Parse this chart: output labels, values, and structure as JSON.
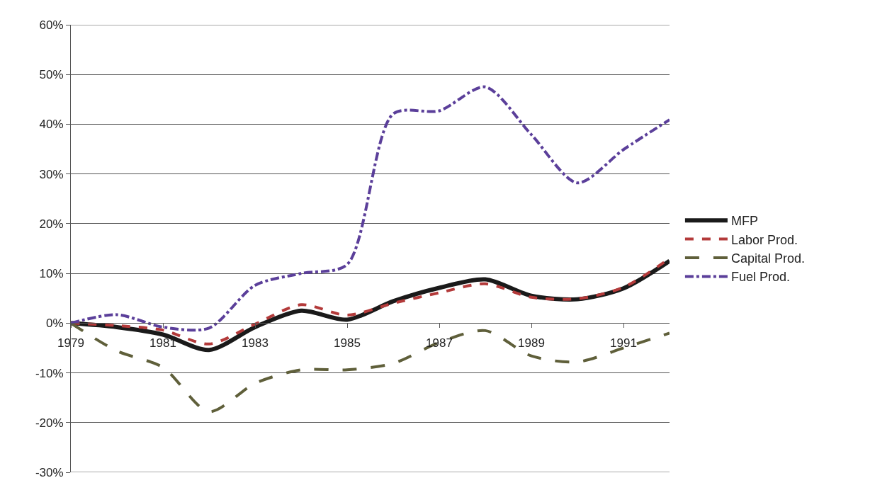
{
  "chart_data": {
    "type": "line",
    "categories": [
      "1979",
      null,
      "1981",
      null,
      "1983",
      null,
      "1985",
      null,
      "1987",
      null,
      "1989",
      null,
      "1991",
      null
    ],
    "series": [
      {
        "name": "MFP",
        "color": "#1a1a1a",
        "line_style": "solid",
        "values": [
          0,
          -0.8,
          -2.3,
          -5.4,
          -0.8,
          2.5,
          0.7,
          4.4,
          7.1,
          8.8,
          5.5,
          4.8,
          7.0,
          12.5
        ]
      },
      {
        "name": "Labor Prod.",
        "color": "#b33a3a",
        "line_style": "dashed",
        "values": [
          0,
          -0.5,
          -1.4,
          -4.2,
          -0.2,
          3.7,
          1.6,
          4.0,
          6.1,
          7.9,
          5.2,
          4.9,
          7.2,
          13.0
        ]
      },
      {
        "name": "Capital Prod.",
        "color": "#5f5f3a",
        "line_style": "longdash",
        "values": [
          0,
          -5.6,
          -8.9,
          -17.8,
          -12.1,
          -9.4,
          -9.4,
          -8.1,
          -3.9,
          -1.5,
          -6.6,
          -7.8,
          -5.0,
          -2.0
        ]
      },
      {
        "name": "Fuel Prod.",
        "color": "#5b3f9a",
        "line_style": "dashdot",
        "values": [
          0,
          1.7,
          -0.8,
          -1.0,
          7.6,
          10.0,
          11.8,
          42.1,
          42.7,
          47.5,
          37.9,
          28.2,
          34.9,
          40.9
        ]
      }
    ],
    "ylim": [
      -30,
      60
    ],
    "yticks": [
      {
        "value": -30,
        "label": "-30%"
      },
      {
        "value": -20,
        "label": "-20%"
      },
      {
        "value": -10,
        "label": "-10%"
      },
      {
        "value": 0,
        "label": "0%"
      },
      {
        "value": 10,
        "label": "10%"
      },
      {
        "value": 20,
        "label": "20%"
      },
      {
        "value": 30,
        "label": "30%"
      },
      {
        "value": 40,
        "label": "40%"
      },
      {
        "value": 50,
        "label": "50%"
      },
      {
        "value": 60,
        "label": "60%"
      }
    ],
    "grid": "y",
    "legend": "right",
    "marker": "none"
  }
}
